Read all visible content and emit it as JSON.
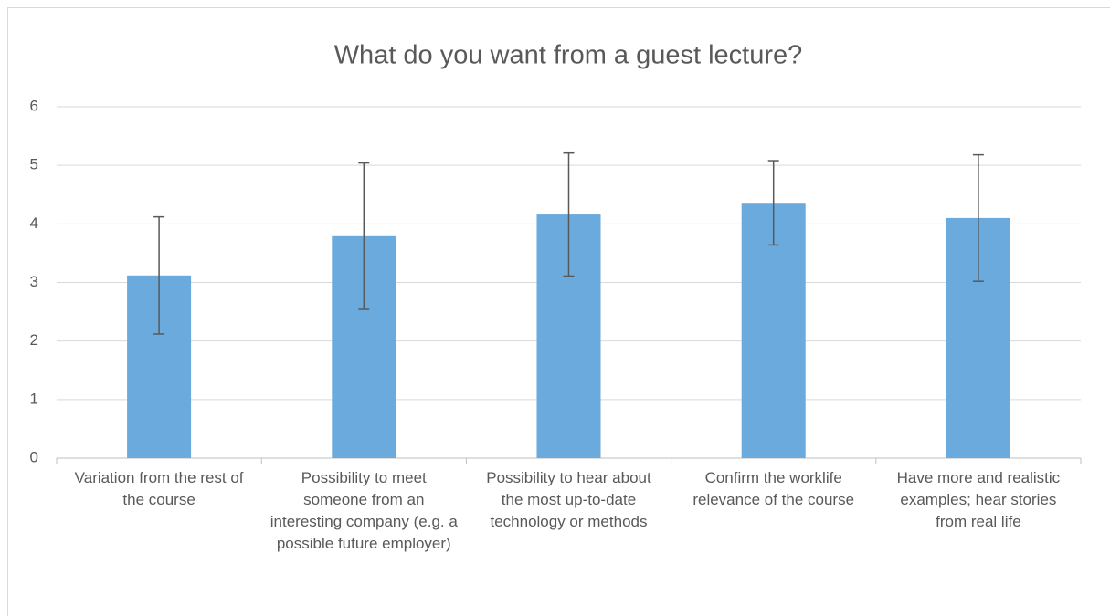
{
  "chart_data": {
    "type": "bar",
    "title": "What do you want from a guest lecture?",
    "categories": [
      "Variation from the rest of the course",
      "Possibility to meet someone from an interesting company (e.g. a possible future employer)",
      "Possibility to hear about the most up-to-date technology or methods",
      "Confirm the worklife relevance of the course",
      "Have more and realistic examples; hear stories from real life"
    ],
    "values": [
      3.12,
      3.79,
      4.16,
      4.36,
      4.1
    ],
    "errors": [
      1.0,
      1.25,
      1.05,
      0.72,
      1.08
    ],
    "color": "#6aaadd",
    "error_color": "#595959",
    "ylim": [
      0,
      6
    ],
    "yticks": [
      0,
      1,
      2,
      3,
      4,
      5,
      6
    ],
    "grid": true
  }
}
